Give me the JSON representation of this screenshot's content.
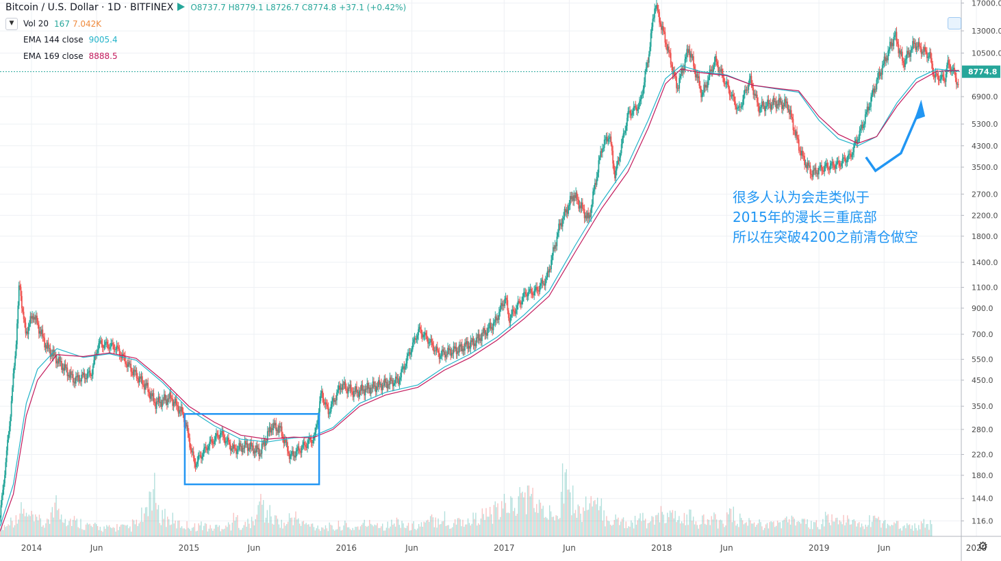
{
  "header": {
    "symbol": "Bitcoin / U.S. Dollar · 1D · BITFINEX",
    "ohlc": "O8737.7  H8779.1  L8726.7  C8774.8  +37.1 (+0.42%)"
  },
  "indicators": [
    {
      "name": "Vol 20",
      "value": "167",
      "value2": "7.042K"
    },
    {
      "name": "EMA 144 close",
      "value": "9005.4"
    },
    {
      "name": "EMA 169 close",
      "value": "8888.5"
    }
  ],
  "annotation": {
    "line1": "很多人认为会走类似于",
    "line2": "2015年的漫长三重底部",
    "line3": "所以在突破4200之前清仓做空"
  },
  "colors": {
    "up": "#26a69a",
    "down": "#ef5350",
    "ema144": "#22b3c9",
    "ema169": "#c2185b",
    "annotation": "#2196f3",
    "last_price": "#26a69a"
  },
  "icons": {
    "settings": "gear-icon",
    "toggle": "chevron-down-icon",
    "snapshot": "camera-icon"
  },
  "chart_data": {
    "type": "line",
    "scale": "log",
    "ylim": [
      100,
      17500
    ],
    "xlim": [
      "2013-10-20",
      "2019-11-27"
    ],
    "y_ticks": [
      116.0,
      144.0,
      180.0,
      220.0,
      280.0,
      350.0,
      450.0,
      550.0,
      700.0,
      900.0,
      1100.0,
      1400.0,
      1800.0,
      2200.0,
      2700.0,
      3500.0,
      4300.0,
      5300.0,
      6900.0,
      10500.0,
      13000.0,
      17000.0
    ],
    "x_ticks": [
      {
        "date": "2014-01-01",
        "label": "2014"
      },
      {
        "date": "2014-06-01",
        "label": "Jun"
      },
      {
        "date": "2015-01-01",
        "label": "2015"
      },
      {
        "date": "2015-06-01",
        "label": "Jun"
      },
      {
        "date": "2016-01-01",
        "label": "2016"
      },
      {
        "date": "2016-06-01",
        "label": "Jun"
      },
      {
        "date": "2017-01-01",
        "label": "2017"
      },
      {
        "date": "2017-06-01",
        "label": "Jun"
      },
      {
        "date": "2018-01-01",
        "label": "2018"
      },
      {
        "date": "2018-06-01",
        "label": "Jun"
      },
      {
        "date": "2019-01-01",
        "label": "2019"
      },
      {
        "date": "2019-06-01",
        "label": "Jun"
      },
      {
        "date": "2020-01-01",
        "label": "2020"
      }
    ],
    "last_price": 8774.8,
    "series": [
      {
        "name": "BTC/USD",
        "style": "candles",
        "x": [
          "2013-10-20",
          "2013-11-10",
          "2013-11-25",
          "2013-12-04",
          "2013-12-18",
          "2014-01-05",
          "2014-02-05",
          "2014-02-25",
          "2014-04-10",
          "2014-05-20",
          "2014-06-05",
          "2014-07-15",
          "2014-08-20",
          "2014-09-25",
          "2014-10-15",
          "2014-11-20",
          "2014-12-20",
          "2015-01-14",
          "2015-02-15",
          "2015-03-15",
          "2015-04-15",
          "2015-05-15",
          "2015-06-15",
          "2015-07-12",
          "2015-08-01",
          "2015-08-24",
          "2015-09-20",
          "2015-10-20",
          "2015-11-04",
          "2015-11-20",
          "2015-12-20",
          "2016-01-20",
          "2016-03-01",
          "2016-05-01",
          "2016-06-17",
          "2016-07-10",
          "2016-08-03",
          "2016-09-15",
          "2016-10-25",
          "2016-12-10",
          "2017-01-04",
          "2017-01-12",
          "2017-02-20",
          "2017-03-15",
          "2017-04-10",
          "2017-05-10",
          "2017-06-11",
          "2017-07-16",
          "2017-08-15",
          "2017-09-02",
          "2017-09-15",
          "2017-10-15",
          "2017-11-12",
          "2017-12-01",
          "2017-12-17",
          "2018-01-01",
          "2018-01-15",
          "2018-02-06",
          "2018-03-05",
          "2018-04-05",
          "2018-05-05",
          "2018-06-29",
          "2018-07-25",
          "2018-08-14",
          "2018-09-20",
          "2018-10-20",
          "2018-11-15",
          "2018-11-25",
          "2018-12-15",
          "2019-01-15",
          "2019-02-15",
          "2019-03-15",
          "2019-04-10",
          "2019-05-15",
          "2019-06-26",
          "2019-07-15",
          "2019-08-10",
          "2019-09-15",
          "2019-09-25",
          "2019-10-20",
          "2019-10-26",
          "2019-11-10",
          "2019-11-22"
        ],
        "values": [
          120,
          280,
          600,
          1150,
          700,
          850,
          620,
          560,
          450,
          480,
          640,
          620,
          500,
          420,
          360,
          380,
          320,
          200,
          240,
          270,
          230,
          240,
          225,
          290,
          280,
          215,
          235,
          260,
          400,
          330,
          430,
          400,
          420,
          450,
          730,
          660,
          575,
          605,
          650,
          780,
          1000,
          810,
          1040,
          1060,
          1200,
          2000,
          2700,
          2100,
          4200,
          4800,
          3200,
          5800,
          6400,
          10000,
          17000,
          13500,
          11000,
          7500,
          11000,
          7000,
          9800,
          6000,
          8200,
          6200,
          6500,
          6400,
          4300,
          3800,
          3300,
          3500,
          3600,
          3900,
          5100,
          8000,
          12500,
          9500,
          11500,
          10200,
          8400,
          8200,
          9500,
          8700,
          7500
        ]
      },
      {
        "name": "EMA 144 close",
        "style": "line",
        "x": [
          "2013-10-20",
          "2013-11-20",
          "2013-12-20",
          "2014-01-15",
          "2014-03-01",
          "2014-05-01",
          "2014-07-01",
          "2014-09-01",
          "2014-11-01",
          "2015-01-01",
          "2015-03-01",
          "2015-05-01",
          "2015-07-01",
          "2015-09-01",
          "2015-10-15",
          "2015-12-01",
          "2016-02-01",
          "2016-04-01",
          "2016-06-15",
          "2016-08-15",
          "2016-10-15",
          "2016-12-15",
          "2017-02-15",
          "2017-04-15",
          "2017-06-15",
          "2017-08-15",
          "2017-10-15",
          "2017-12-01",
          "2018-01-10",
          "2018-02-15",
          "2018-04-01",
          "2018-06-01",
          "2018-08-01",
          "2018-10-01",
          "2018-11-15",
          "2019-01-01",
          "2019-02-15",
          "2019-04-01",
          "2019-05-15",
          "2019-07-01",
          "2019-08-15",
          "2019-10-01",
          "2019-11-22"
        ],
        "values": [
          110,
          165,
          360,
          500,
          610,
          560,
          580,
          545,
          440,
          340,
          290,
          255,
          248,
          258,
          262,
          285,
          360,
          400,
          430,
          510,
          580,
          680,
          840,
          1060,
          1650,
          2500,
          3600,
          5500,
          8200,
          9300,
          8800,
          8500,
          7700,
          7400,
          7200,
          5500,
          4600,
          4300,
          4700,
          6500,
          8200,
          9000,
          8800
        ]
      },
      {
        "name": "EMA 169 close",
        "style": "line",
        "x": [
          "2013-10-20",
          "2013-11-20",
          "2013-12-20",
          "2014-01-15",
          "2014-03-01",
          "2014-05-01",
          "2014-07-01",
          "2014-09-01",
          "2014-11-01",
          "2015-01-01",
          "2015-03-01",
          "2015-05-01",
          "2015-07-01",
          "2015-09-01",
          "2015-10-15",
          "2015-12-01",
          "2016-02-01",
          "2016-04-01",
          "2016-06-15",
          "2016-08-15",
          "2016-10-15",
          "2016-12-15",
          "2017-02-15",
          "2017-04-15",
          "2017-06-15",
          "2017-08-15",
          "2017-10-15",
          "2017-12-01",
          "2018-01-10",
          "2018-02-15",
          "2018-04-01",
          "2018-06-01",
          "2018-08-01",
          "2018-10-01",
          "2018-11-15",
          "2019-01-01",
          "2019-02-15",
          "2019-04-01",
          "2019-05-15",
          "2019-07-01",
          "2019-08-15",
          "2019-10-01",
          "2019-11-22"
        ],
        "values": [
          105,
          150,
          320,
          450,
          575,
          565,
          585,
          555,
          450,
          350,
          300,
          265,
          255,
          260,
          258,
          280,
          350,
          390,
          420,
          495,
          560,
          660,
          810,
          1010,
          1550,
          2350,
          3350,
          5100,
          7800,
          9000,
          8700,
          8450,
          7700,
          7450,
          7300,
          5700,
          4800,
          4400,
          4700,
          6300,
          7900,
          8800,
          8888
        ]
      }
    ],
    "volume_series": {
      "name": "Vol 20",
      "ylim": [
        0,
        220
      ],
      "values": [
        40,
        60,
        90,
        70,
        55,
        45,
        120,
        80,
        60,
        50,
        40,
        35,
        30,
        30,
        35,
        30,
        45,
        75,
        160,
        80,
        60,
        45,
        40,
        35,
        40,
        30,
        35,
        40,
        60,
        40,
        50,
        120,
        80,
        60,
        45,
        70,
        50,
        40,
        35,
        35,
        30,
        40,
        30,
        35,
        45,
        50,
        40,
        45,
        55,
        35,
        40,
        45,
        60,
        70,
        40,
        60,
        50,
        65,
        75,
        80,
        90,
        120,
        110,
        150,
        140,
        100,
        80,
        110,
        220,
        130,
        90,
        120,
        100,
        70,
        60,
        55,
        50,
        60,
        55,
        60,
        80,
        70,
        60,
        70,
        50,
        55,
        60,
        55,
        75,
        60,
        50,
        55,
        45,
        40,
        50,
        60,
        55,
        45,
        40,
        50,
        65,
        60,
        55,
        45,
        40,
        55,
        60,
        45,
        50,
        40,
        35,
        40,
        45,
        35
      ]
    }
  }
}
